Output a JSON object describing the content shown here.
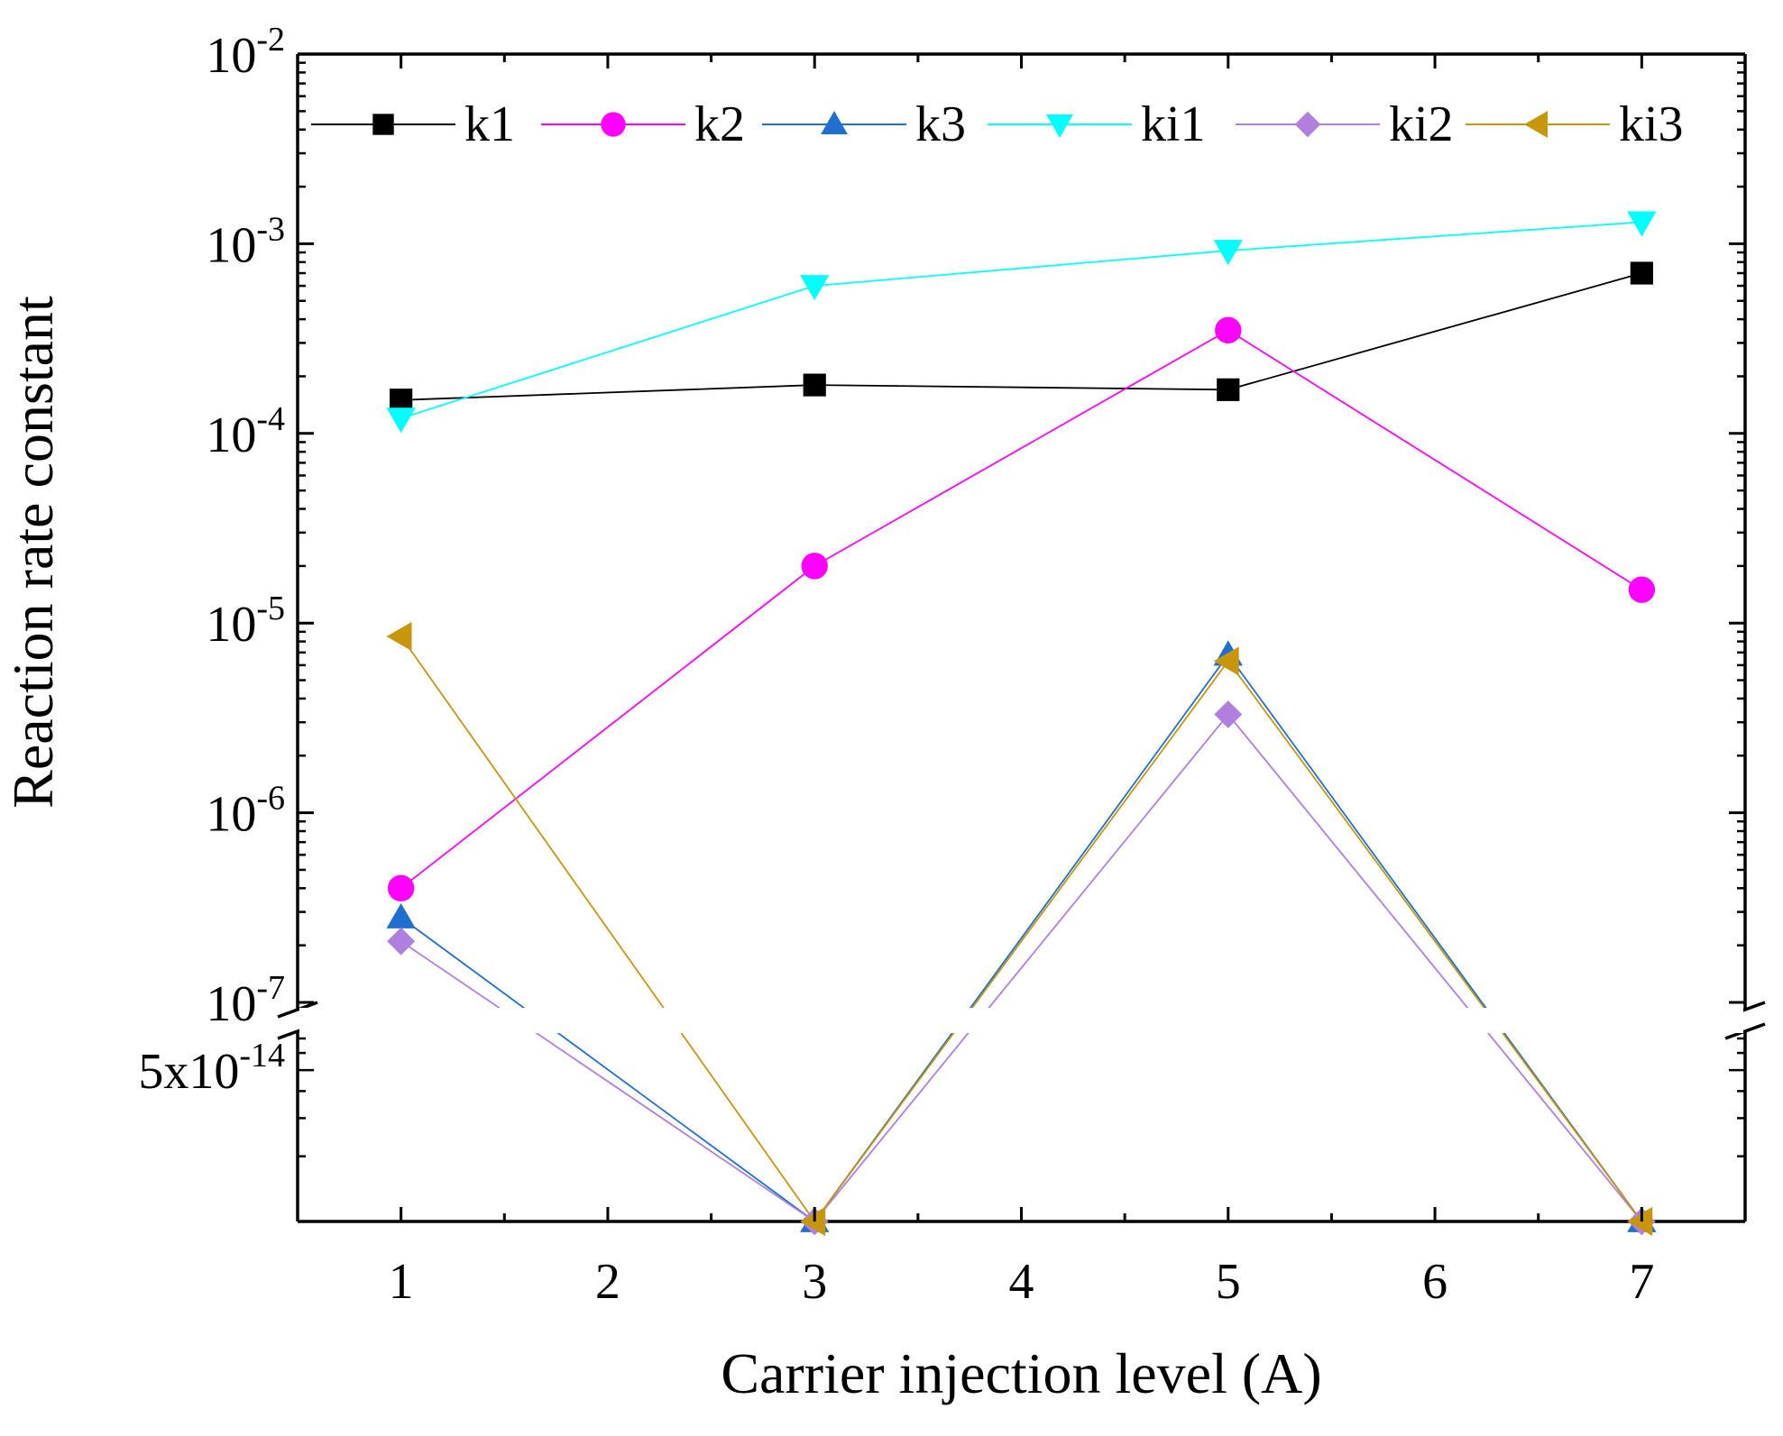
{
  "chart_data": {
    "type": "line",
    "xlabel": "Carrier injection level (A)",
    "ylabel": "Reaction rate constant",
    "x_ticks": [
      1,
      2,
      3,
      4,
      5,
      6,
      7
    ],
    "xlim": [
      0.5,
      7.5
    ],
    "y_scale": "log, broken axis",
    "y_upper_range": [
      1e-07,
      0.01
    ],
    "y_lower_range": [
      1e-14,
      7e-14
    ],
    "y_tick_labels": [
      {
        "base": "10",
        "exp": "-2",
        "value": 0.01
      },
      {
        "base": "10",
        "exp": "-3",
        "value": 0.001
      },
      {
        "base": "10",
        "exp": "-4",
        "value": 0.0001
      },
      {
        "base": "10",
        "exp": "-5",
        "value": 1e-05
      },
      {
        "base": "10",
        "exp": "-6",
        "value": 1e-06
      },
      {
        "base": "10",
        "exp": "-7",
        "value": 1e-07
      },
      {
        "base": "5x10",
        "exp": "-14",
        "value": 5e-14
      }
    ],
    "legend_position": "top",
    "series": [
      {
        "name": "k1",
        "color": "#000000",
        "marker": "square",
        "x": [
          1,
          3,
          5,
          7
        ],
        "y": [
          0.00015,
          0.00018,
          0.00017,
          0.0007
        ]
      },
      {
        "name": "k2",
        "color": "#ff00ff",
        "marker": "circle",
        "x": [
          1,
          3,
          5,
          7
        ],
        "y": [
          4e-07,
          2e-05,
          0.00035,
          1.5e-05
        ]
      },
      {
        "name": "k3",
        "color": "#1f6fd1",
        "marker": "triangle-up",
        "x": [
          1,
          3,
          5,
          7
        ],
        "y": [
          2.8e-07,
          1e-14,
          6.8e-06,
          1e-14
        ]
      },
      {
        "name": "ki1",
        "color": "#00ffff",
        "marker": "triangle-down",
        "x": [
          1,
          3,
          5,
          7
        ],
        "y": [
          0.00012,
          0.0006,
          0.00092,
          0.0013
        ]
      },
      {
        "name": "ki2",
        "color": "#b07fe0",
        "marker": "diamond",
        "x": [
          1,
          3,
          5,
          7
        ],
        "y": [
          2.1e-07,
          1e-14,
          3.3e-06,
          1e-14
        ]
      },
      {
        "name": "ki3",
        "color": "#c8960c",
        "marker": "triangle-left",
        "x": [
          1,
          3,
          5,
          7
        ],
        "y": [
          8.5e-06,
          1e-14,
          6.3e-06,
          1e-14
        ]
      }
    ]
  }
}
